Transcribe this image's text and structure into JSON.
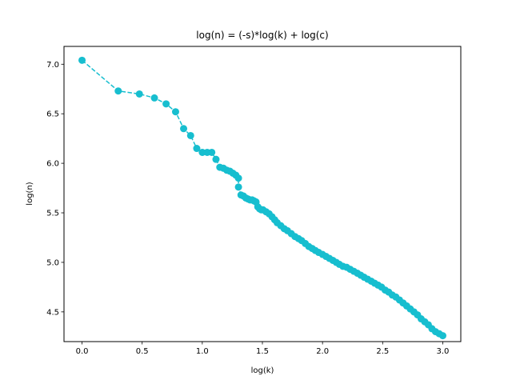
{
  "chart_data": {
    "type": "line",
    "title": "log(n) = (-s)*log(k) + log(c)",
    "xlabel": "log(k)",
    "ylabel": "log(n)",
    "xlim": [
      -0.15,
      3.15
    ],
    "ylim": [
      4.2,
      7.18
    ],
    "xticks": [
      "0.0",
      "0.5",
      "1.0",
      "1.5",
      "2.0",
      "2.5",
      "3.0"
    ],
    "yticks": [
      "4.5",
      "5.0",
      "5.5",
      "6.0",
      "6.5",
      "7.0"
    ],
    "grid": false,
    "color": "#17becf",
    "line_style": "dashed",
    "marker": "circle",
    "series": [
      {
        "points": [
          [
            0.0,
            7.04
          ],
          [
            0.301,
            6.73
          ],
          [
            0.477,
            6.7
          ],
          [
            0.602,
            6.66
          ],
          [
            0.699,
            6.6
          ],
          [
            0.778,
            6.52
          ],
          [
            0.845,
            6.35
          ],
          [
            0.903,
            6.28
          ],
          [
            0.954,
            6.15
          ],
          [
            1.0,
            6.11
          ],
          [
            1.041,
            6.11
          ],
          [
            1.079,
            6.11
          ],
          [
            1.114,
            6.04
          ],
          [
            1.146,
            5.96
          ],
          [
            1.176,
            5.95
          ],
          [
            1.204,
            5.93
          ],
          [
            1.23,
            5.92
          ],
          [
            1.255,
            5.9
          ],
          [
            1.279,
            5.88
          ],
          [
            1.301,
            5.85
          ],
          [
            1.301,
            5.76
          ],
          [
            1.322,
            5.68
          ],
          [
            1.342,
            5.67
          ],
          [
            1.362,
            5.65
          ],
          [
            1.38,
            5.64
          ],
          [
            1.398,
            5.63
          ],
          [
            1.415,
            5.63
          ],
          [
            1.431,
            5.62
          ],
          [
            1.447,
            5.61
          ],
          [
            1.462,
            5.56
          ],
          [
            1.477,
            5.54
          ],
          [
            1.491,
            5.53
          ],
          [
            1.505,
            5.53
          ],
          [
            1.531,
            5.51
          ],
          [
            1.556,
            5.49
          ],
          [
            1.58,
            5.46
          ],
          [
            1.602,
            5.43
          ],
          [
            1.623,
            5.4
          ],
          [
            1.653,
            5.37
          ],
          [
            1.681,
            5.34
          ],
          [
            1.708,
            5.32
          ],
          [
            1.74,
            5.29
          ],
          [
            1.771,
            5.26
          ],
          [
            1.8,
            5.24
          ],
          [
            1.826,
            5.22
          ],
          [
            1.857,
            5.19
          ],
          [
            1.886,
            5.16
          ],
          [
            1.914,
            5.14
          ],
          [
            1.94,
            5.12
          ],
          [
            1.968,
            5.1
          ],
          [
            2.0,
            5.08
          ],
          [
            2.029,
            5.06
          ],
          [
            2.057,
            5.04
          ],
          [
            2.086,
            5.02
          ],
          [
            2.114,
            5.0
          ],
          [
            2.14,
            4.98
          ],
          [
            2.17,
            4.96
          ],
          [
            2.201,
            4.95
          ],
          [
            2.23,
            4.93
          ],
          [
            2.26,
            4.91
          ],
          [
            2.29,
            4.89
          ],
          [
            2.318,
            4.87
          ],
          [
            2.346,
            4.85
          ],
          [
            2.375,
            4.83
          ],
          [
            2.405,
            4.81
          ],
          [
            2.433,
            4.79
          ],
          [
            2.462,
            4.77
          ],
          [
            2.491,
            4.75
          ],
          [
            2.521,
            4.72
          ],
          [
            2.55,
            4.7
          ],
          [
            2.58,
            4.67
          ],
          [
            2.61,
            4.65
          ],
          [
            2.64,
            4.62
          ],
          [
            2.67,
            4.59
          ],
          [
            2.7,
            4.56
          ],
          [
            2.73,
            4.53
          ],
          [
            2.76,
            4.5
          ],
          [
            2.79,
            4.47
          ],
          [
            2.82,
            4.43
          ],
          [
            2.85,
            4.4
          ],
          [
            2.88,
            4.37
          ],
          [
            2.91,
            4.33
          ],
          [
            2.94,
            4.3
          ],
          [
            2.97,
            4.28
          ],
          [
            3.0,
            4.26
          ]
        ]
      }
    ]
  }
}
